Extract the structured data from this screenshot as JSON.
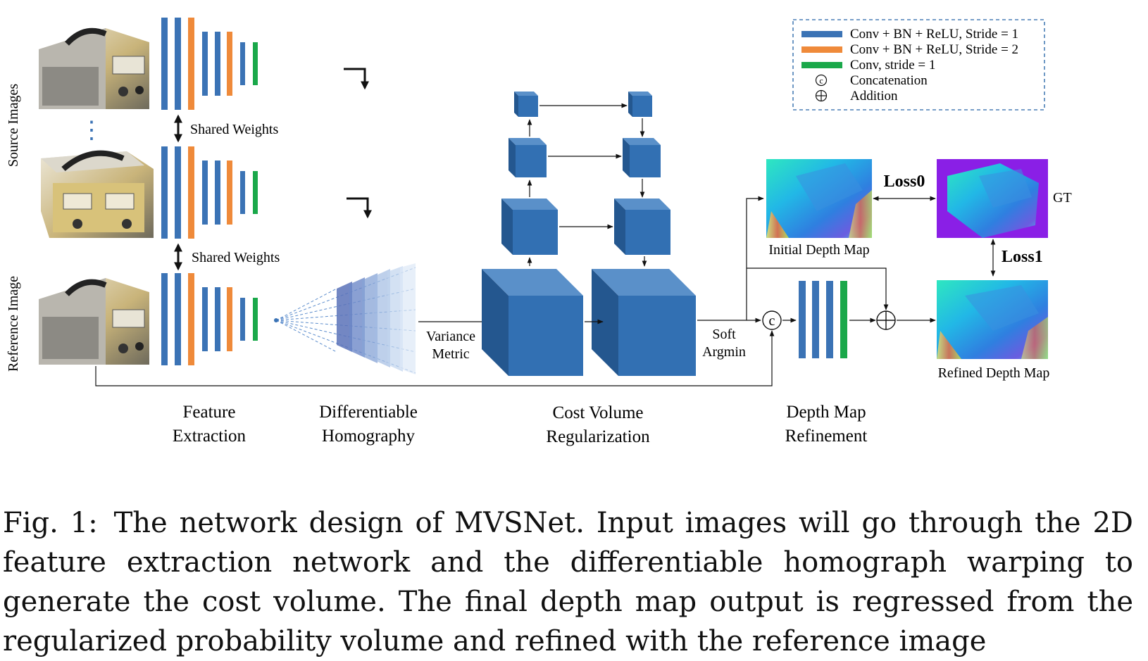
{
  "legend": {
    "items": [
      {
        "label": "Conv + BN + ReLU, Stride = 1",
        "color": "#3b73b5"
      },
      {
        "label": "Conv + BN + ReLU, Stride = 2",
        "color": "#ef8a3a"
      },
      {
        "label": "Conv, stride = 1",
        "color": "#1aa84a"
      },
      {
        "label": "Concatenation",
        "symbol": "©"
      },
      {
        "label": "Addition",
        "symbol": "⊕"
      }
    ]
  },
  "side_labels": {
    "source": "Source Images",
    "reference": "Reference Image"
  },
  "shared_weights": [
    "Shared Weights",
    "Shared Weights"
  ],
  "ellipsis": "⋮",
  "labels": {
    "variance_metric": [
      "Variance",
      "Metric"
    ],
    "soft_argmin": [
      "Soft",
      "Argmin"
    ],
    "initial_depth": "Initial Depth Map",
    "refined_depth": "Refined Depth Map",
    "gt": "GT",
    "loss0": "Loss0",
    "loss1": "Loss1",
    "concat_symbol": "c"
  },
  "stages": [
    {
      "line1": "Feature",
      "line2": "Extraction"
    },
    {
      "line1": "Differentiable",
      "line2": "Homography"
    },
    {
      "line1": "Cost Volume",
      "line2": "Regularization"
    },
    {
      "line1": "Depth Map",
      "line2": "Refinement"
    }
  ],
  "caption": {
    "fig": "Fig. 1:",
    "text": "The network design of MVSNet. Input images will go through the 2D feature extraction network and the differentiable homograph warping to generate the cost volume. The final depth map output is regressed from the regularized probability volume and refined with the reference image"
  },
  "colors": {
    "blue": "#3b73b5",
    "orange": "#ef8a3a",
    "green": "#1aa84a",
    "cube_front": "#3270b3",
    "cube_top": "#5a90c9",
    "cube_side": "#24578f",
    "legend_border": "#4a7fb5"
  }
}
